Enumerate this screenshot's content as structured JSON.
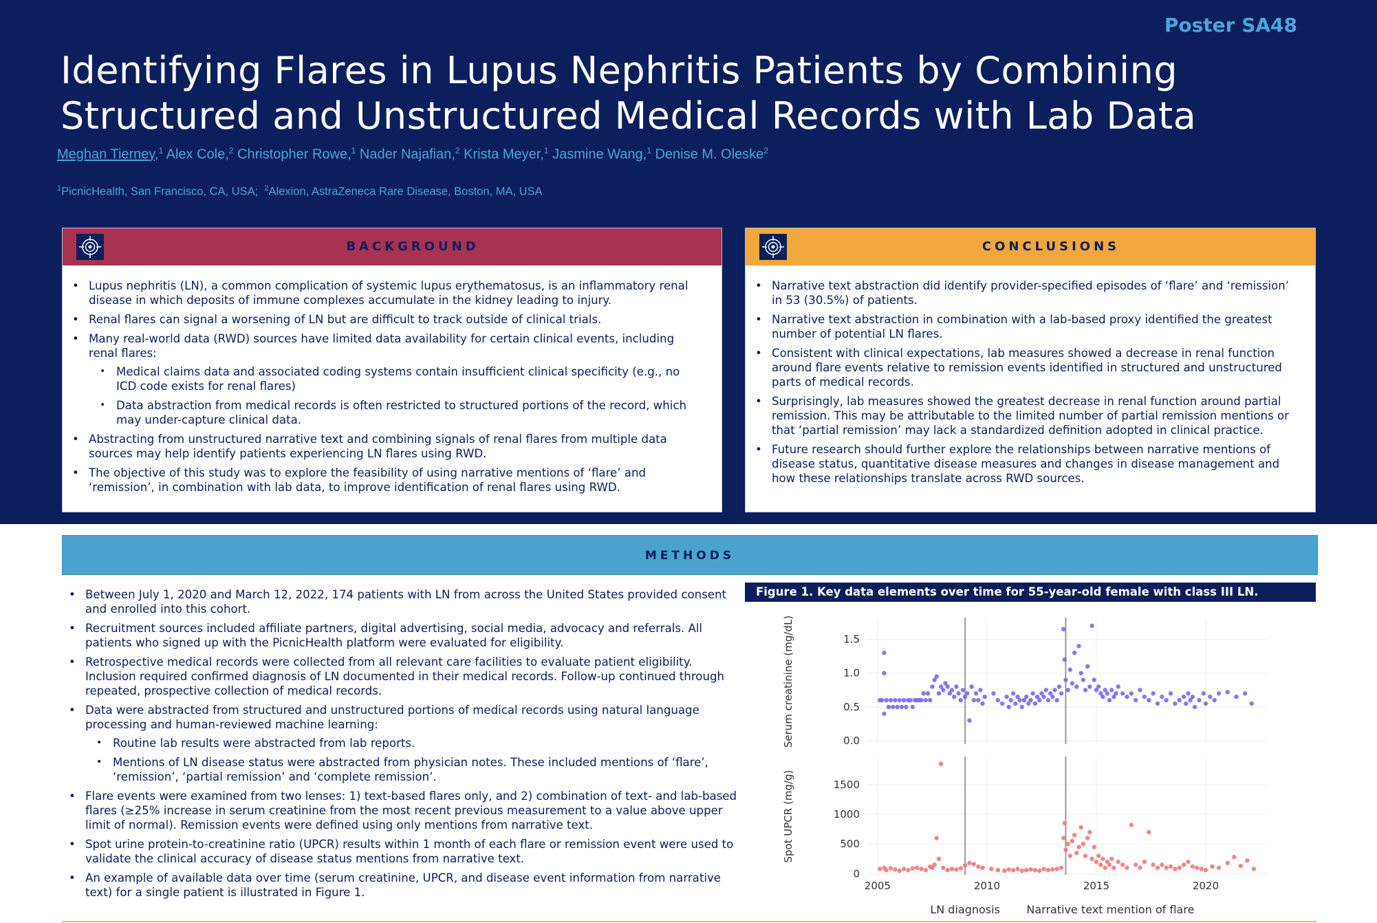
{
  "poster_id": "Poster SA48",
  "title_line1": "Identifying Flares in Lupus Nephritis Patients by Combining",
  "title_line2": "Structured and Unstructured Medical Records with Lab Data",
  "authors": [
    {
      "name": "Meghan Tierney,",
      "sup": "1"
    },
    {
      "name": "Alex Cole,",
      "sup": "2"
    },
    {
      "name": "Christopher Rowe,",
      "sup": "1"
    },
    {
      "name": "Nader Najafian,",
      "sup": "2"
    },
    {
      "name": "Krista Meyer,",
      "sup": "1"
    },
    {
      "name": "Jasmine Wang,",
      "sup": "1"
    },
    {
      "name": "Denise M. Oleske",
      "sup": "2"
    }
  ],
  "affiliations": [
    {
      "sup": "1",
      "text": "PicnicHealth, San Francisco, CA, USA;"
    },
    {
      "sup": "2",
      "text": "Alexion, AstraZeneca Rare Disease, Boston, MA, USA"
    }
  ],
  "background": {
    "title": "BACKGROUND",
    "icon": "target-icon",
    "bullets": [
      "Lupus nephritis (LN), a common complication of systemic lupus erythematosus, is an inflammatory renal disease in which deposits of immune complexes accumulate in the kidney leading to injury.",
      "Renal flares can signal a worsening of LN but are difficult to track outside of clinical trials.",
      "Many real-world data (RWD) sources have limited data availability for certain clinical events, including renal flares:",
      "Abstracting from unstructured narrative text and combining signals of renal flares from multiple data sources may help identify patients experiencing LN flares using RWD.",
      "The objective of this study was to explore the feasibility of using narrative mentions of ‘flare’ and ‘remission’, in combination with lab data, to improve identification of renal flares using RWD."
    ],
    "sub_bullets": [
      "Medical claims data and associated coding systems contain insufficient clinical specificity (e.g., no ICD code exists for renal flares)",
      "Data abstraction from medical records is often restricted to structured portions of the record, which may under-capture clinical data."
    ]
  },
  "conclusions": {
    "title": "CONCLUSIONS",
    "icon": "target-icon",
    "bullets": [
      "Narrative text abstraction did identify provider-specified episodes of ‘flare’ and ‘remission’ in 53 (30.5%) of patients.",
      "Narrative text abstraction in combination with a lab-based proxy identified the greatest number of potential LN flares.",
      "Consistent with clinical expectations, lab measures showed a decrease in renal function around flare events relative to remission events identified in structured and unstructured parts of medical records.",
      "Surprisingly, lab measures showed the greatest decrease in renal function around partial remission. This may be attributable to the limited number of partial remission mentions or that ‘partial remission’ may lack a standardized definition adopted in clinical practice.",
      "Future research should further explore the relationships between narrative mentions of disease status, quantitative disease measures and changes in disease management and how these relationships translate across RWD sources."
    ]
  },
  "methods": {
    "title": "METHODS",
    "bullets": [
      "Between July 1, 2020 and March 12, 2022, 174 patients with LN from across the United States provided consent and enrolled into this cohort.",
      "Recruitment sources included affiliate partners, digital advertising, social media, advocacy and referrals. All patients who signed up with the PicnicHealth platform were evaluated for eligibility.",
      "Retrospective medical records were collected from all relevant care facilities to evaluate patient eligibility. Inclusion required confirmed diagnosis of LN documented in their medical records. Follow-up continued through repeated, prospective collection of medical records.",
      "Data were abstracted from structured and unstructured portions of medical records using natural language processing and human-reviewed machine learning:",
      "Flare events were examined from two lenses: 1) text-based flares only, and 2) combination of text- and lab-based flares (≥25% increase in serum creatinine from the most recent previous measurement to a value above upper limit of normal). Remission events were defined using only mentions from narrative text.",
      "Spot urine protein-to-creatinine ratio (UPCR) results within 1 month of each flare or remission event were used to validate the clinical accuracy of disease status mentions from narrative text.",
      "An example of available data over time (serum creatinine, UPCR, and disease event information from narrative text) for a single patient is illustrated in Figure 1."
    ],
    "sub_bullets": [
      "Routine lab results were abstracted from lab reports.",
      "Mentions of LN disease status were abstracted from physician notes. These included mentions of ‘flare’, ‘remission’, ‘partial remission’ and ‘complete remission’."
    ]
  },
  "figure": {
    "caption": "Figure 1. Key data elements over time for 55-year-old female with class III LN.",
    "legend_items": [
      "LN diagnosis",
      "Narrative text mention of flare"
    ]
  },
  "chart_data": [
    {
      "type": "scatter",
      "name": "creatinine-panel",
      "ylabel": "Serum creatinine (mg/dL)",
      "xlim": [
        2004.5,
        2022.8
      ],
      "ylim": [
        -0.05,
        1.8
      ],
      "yticks": [
        0.0,
        0.5,
        1.0,
        1.5
      ],
      "ytick_labels": [
        "0.0",
        "0.5",
        "1.0",
        "1.5"
      ],
      "color": "#7b68ee",
      "vlines": [
        {
          "x": 2009.0,
          "label": "LN diagnosis"
        },
        {
          "x": 2013.6,
          "label": "Narrative text mention of flare"
        }
      ],
      "points": [
        [
          2005.1,
          0.6
        ],
        [
          2005.2,
          0.6
        ],
        [
          2005.3,
          1.3
        ],
        [
          2005.3,
          1.0
        ],
        [
          2005.3,
          0.4
        ],
        [
          2005.4,
          0.6
        ],
        [
          2005.5,
          0.5
        ],
        [
          2005.6,
          0.6
        ],
        [
          2005.7,
          0.5
        ],
        [
          2005.8,
          0.6
        ],
        [
          2005.9,
          0.5
        ],
        [
          2006.0,
          0.6
        ],
        [
          2006.1,
          0.5
        ],
        [
          2006.2,
          0.6
        ],
        [
          2006.3,
          0.5
        ],
        [
          2006.4,
          0.6
        ],
        [
          2006.5,
          0.6
        ],
        [
          2006.6,
          0.5
        ],
        [
          2006.7,
          0.6
        ],
        [
          2006.8,
          0.6
        ],
        [
          2006.9,
          0.6
        ],
        [
          2007.0,
          0.6
        ],
        [
          2007.1,
          0.7
        ],
        [
          2007.2,
          0.6
        ],
        [
          2007.3,
          0.7
        ],
        [
          2007.4,
          0.6
        ],
        [
          2007.5,
          0.8
        ],
        [
          2007.6,
          0.9
        ],
        [
          2007.7,
          0.95
        ],
        [
          2007.8,
          0.7
        ],
        [
          2007.9,
          0.8
        ],
        [
          2008.0,
          0.75
        ],
        [
          2008.1,
          0.85
        ],
        [
          2008.2,
          0.8
        ],
        [
          2008.3,
          0.7
        ],
        [
          2008.4,
          0.75
        ],
        [
          2008.5,
          0.65
        ],
        [
          2008.6,
          0.8
        ],
        [
          2008.7,
          0.7
        ],
        [
          2008.8,
          0.6
        ],
        [
          2008.9,
          0.75
        ],
        [
          2009.0,
          0.65
        ],
        [
          2009.1,
          0.7
        ],
        [
          2009.2,
          0.3
        ],
        [
          2009.3,
          0.8
        ],
        [
          2009.4,
          0.6
        ],
        [
          2009.5,
          0.7
        ],
        [
          2009.6,
          0.6
        ],
        [
          2009.7,
          0.75
        ],
        [
          2009.8,
          0.55
        ],
        [
          2009.9,
          0.65
        ],
        [
          2010.3,
          0.7
        ],
        [
          2010.5,
          0.6
        ],
        [
          2010.7,
          0.55
        ],
        [
          2010.9,
          0.65
        ],
        [
          2011.0,
          0.5
        ],
        [
          2011.1,
          0.6
        ],
        [
          2011.2,
          0.7
        ],
        [
          2011.3,
          0.55
        ],
        [
          2011.4,
          0.65
        ],
        [
          2011.5,
          0.6
        ],
        [
          2011.6,
          0.5
        ],
        [
          2011.7,
          0.6
        ],
        [
          2011.8,
          0.65
        ],
        [
          2011.9,
          0.55
        ],
        [
          2012.0,
          0.6
        ],
        [
          2012.1,
          0.7
        ],
        [
          2012.2,
          0.55
        ],
        [
          2012.3,
          0.65
        ],
        [
          2012.4,
          0.6
        ],
        [
          2012.5,
          0.7
        ],
        [
          2012.6,
          0.65
        ],
        [
          2012.7,
          0.75
        ],
        [
          2012.8,
          0.6
        ],
        [
          2012.9,
          0.7
        ],
        [
          2013.0,
          0.65
        ],
        [
          2013.1,
          0.75
        ],
        [
          2013.2,
          0.6
        ],
        [
          2013.3,
          0.8
        ],
        [
          2013.4,
          0.7
        ],
        [
          2013.5,
          1.65
        ],
        [
          2013.55,
          1.2
        ],
        [
          2013.6,
          0.9
        ],
        [
          2013.7,
          0.75
        ],
        [
          2013.8,
          1.05
        ],
        [
          2013.9,
          0.85
        ],
        [
          2014.0,
          1.3
        ],
        [
          2014.1,
          0.8
        ],
        [
          2014.2,
          1.4
        ],
        [
          2014.3,
          1.0
        ],
        [
          2014.4,
          0.9
        ],
        [
          2014.5,
          0.75
        ],
        [
          2014.6,
          1.1
        ],
        [
          2014.7,
          0.8
        ],
        [
          2014.8,
          1.7
        ],
        [
          2014.9,
          0.9
        ],
        [
          2015.0,
          0.75
        ],
        [
          2015.1,
          0.8
        ],
        [
          2015.2,
          0.7
        ],
        [
          2015.3,
          0.65
        ],
        [
          2015.4,
          0.75
        ],
        [
          2015.5,
          0.7
        ],
        [
          2015.6,
          0.6
        ],
        [
          2015.7,
          0.75
        ],
        [
          2015.8,
          0.65
        ],
        [
          2015.9,
          0.7
        ],
        [
          2016.0,
          0.8
        ],
        [
          2016.2,
          0.7
        ],
        [
          2016.4,
          0.65
        ],
        [
          2016.6,
          0.7
        ],
        [
          2016.8,
          0.6
        ],
        [
          2017.0,
          0.75
        ],
        [
          2017.2,
          0.65
        ],
        [
          2017.4,
          0.6
        ],
        [
          2017.6,
          0.7
        ],
        [
          2017.8,
          0.55
        ],
        [
          2018.0,
          0.65
        ],
        [
          2018.2,
          0.6
        ],
        [
          2018.4,
          0.7
        ],
        [
          2018.6,
          0.55
        ],
        [
          2018.8,
          0.6
        ],
        [
          2019.0,
          0.65
        ],
        [
          2019.1,
          0.55
        ],
        [
          2019.2,
          0.7
        ],
        [
          2019.3,
          0.6
        ],
        [
          2019.4,
          0.65
        ],
        [
          2019.5,
          0.5
        ],
        [
          2019.7,
          0.6
        ],
        [
          2019.9,
          0.7
        ],
        [
          2020.0,
          0.55
        ],
        [
          2020.2,
          0.65
        ],
        [
          2020.4,
          0.6
        ],
        [
          2020.6,
          0.7
        ],
        [
          2021.0,
          0.72
        ],
        [
          2021.4,
          0.65
        ],
        [
          2021.8,
          0.7
        ],
        [
          2022.1,
          0.55
        ]
      ]
    },
    {
      "type": "scatter",
      "name": "upcr-panel",
      "ylabel": "Spot UPCR (mg/g)",
      "xlim": [
        2004.5,
        2022.8
      ],
      "ylim": [
        -20,
        1950
      ],
      "yticks": [
        0,
        500,
        1000,
        1500
      ],
      "ytick_labels": [
        "0",
        "500",
        "1000",
        "1500"
      ],
      "xticks": [
        2005,
        2010,
        2015,
        2020
      ],
      "xtick_labels": [
        "2005",
        "2010",
        "2015",
        "2020"
      ],
      "color": "#ee7a7a",
      "vlines": [
        {
          "x": 2009.0,
          "label": "LN diagnosis"
        },
        {
          "x": 2013.6,
          "label": "Narrative text mention of flare"
        }
      ],
      "points": [
        [
          2005.1,
          80
        ],
        [
          2005.3,
          100
        ],
        [
          2005.4,
          60
        ],
        [
          2005.6,
          90
        ],
        [
          2005.8,
          70
        ],
        [
          2006.0,
          50
        ],
        [
          2006.2,
          80
        ],
        [
          2006.4,
          60
        ],
        [
          2006.6,
          90
        ],
        [
          2006.8,
          100
        ],
        [
          2007.0,
          80
        ],
        [
          2007.2,
          60
        ],
        [
          2007.4,
          120
        ],
        [
          2007.5,
          100
        ],
        [
          2007.6,
          150
        ],
        [
          2007.7,
          600
        ],
        [
          2007.8,
          250
        ],
        [
          2007.9,
          1850
        ],
        [
          2008.0,
          100
        ],
        [
          2008.2,
          60
        ],
        [
          2008.4,
          80
        ],
        [
          2008.6,
          70
        ],
        [
          2008.8,
          90
        ],
        [
          2009.0,
          140
        ],
        [
          2009.2,
          180
        ],
        [
          2009.4,
          160
        ],
        [
          2009.6,
          120
        ],
        [
          2009.8,
          100
        ],
        [
          2010.2,
          80
        ],
        [
          2010.5,
          60
        ],
        [
          2010.8,
          50
        ],
        [
          2011.0,
          70
        ],
        [
          2011.2,
          60
        ],
        [
          2011.4,
          80
        ],
        [
          2011.6,
          50
        ],
        [
          2011.8,
          60
        ],
        [
          2012.0,
          70
        ],
        [
          2012.2,
          60
        ],
        [
          2012.4,
          50
        ],
        [
          2012.6,
          80
        ],
        [
          2012.8,
          60
        ],
        [
          2013.0,
          70
        ],
        [
          2013.2,
          80
        ],
        [
          2013.4,
          100
        ],
        [
          2013.5,
          600
        ],
        [
          2013.55,
          850
        ],
        [
          2013.6,
          400
        ],
        [
          2013.7,
          500
        ],
        [
          2013.8,
          300
        ],
        [
          2013.9,
          550
        ],
        [
          2014.0,
          650
        ],
        [
          2014.1,
          350
        ],
        [
          2014.2,
          450
        ],
        [
          2014.3,
          780
        ],
        [
          2014.4,
          500
        ],
        [
          2014.5,
          300
        ],
        [
          2014.6,
          600
        ],
        [
          2014.7,
          700
        ],
        [
          2014.8,
          250
        ],
        [
          2014.9,
          450
        ],
        [
          2015.0,
          200
        ],
        [
          2015.1,
          300
        ],
        [
          2015.2,
          150
        ],
        [
          2015.3,
          250
        ],
        [
          2015.4,
          100
        ],
        [
          2015.5,
          200
        ],
        [
          2015.6,
          150
        ],
        [
          2015.7,
          250
        ],
        [
          2015.8,
          100
        ],
        [
          2016.0,
          200
        ],
        [
          2016.2,
          150
        ],
        [
          2016.4,
          100
        ],
        [
          2016.6,
          820
        ],
        [
          2016.8,
          150
        ],
        [
          2017.0,
          100
        ],
        [
          2017.2,
          200
        ],
        [
          2017.4,
          700
        ],
        [
          2017.6,
          150
        ],
        [
          2017.8,
          100
        ],
        [
          2018.0,
          150
        ],
        [
          2018.2,
          100
        ],
        [
          2018.4,
          120
        ],
        [
          2018.6,
          80
        ],
        [
          2018.8,
          100
        ],
        [
          2019.0,
          150
        ],
        [
          2019.2,
          200
        ],
        [
          2019.4,
          120
        ],
        [
          2019.6,
          100
        ],
        [
          2019.8,
          80
        ],
        [
          2020.0,
          60
        ],
        [
          2020.3,
          120
        ],
        [
          2020.6,
          100
        ],
        [
          2021.0,
          180
        ],
        [
          2021.3,
          280
        ],
        [
          2021.6,
          130
        ],
        [
          2021.9,
          220
        ],
        [
          2022.2,
          80
        ]
      ]
    }
  ]
}
